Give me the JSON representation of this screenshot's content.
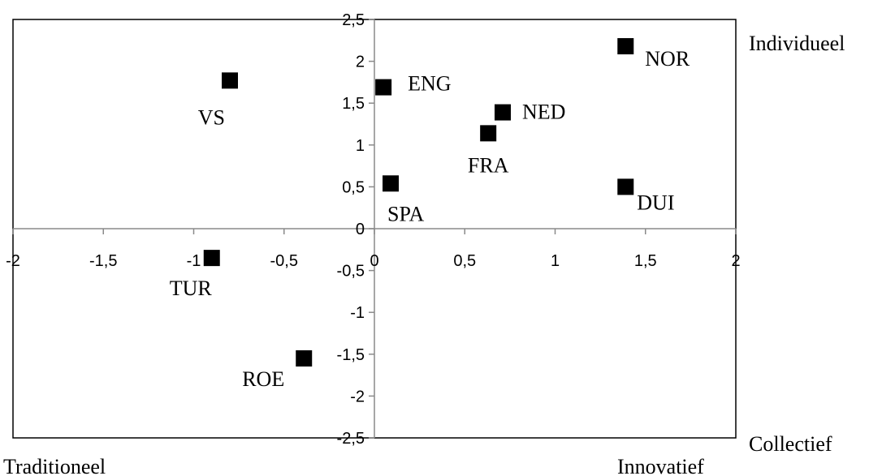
{
  "chart_data": {
    "type": "scatter",
    "xlim": [
      -2,
      2
    ],
    "ylim": [
      -2.5,
      2.5
    ],
    "x_ticks": [
      "-2",
      "-1,5",
      "-1",
      "-0,5",
      "0",
      "0,5",
      "1",
      "1,5",
      "2"
    ],
    "y_ticks": [
      "-2,5",
      "-2",
      "-1,5",
      "-1",
      "-0,5",
      "0",
      "0,5",
      "1",
      "1,5",
      "2",
      "2,5"
    ],
    "grid": false,
    "points": [
      {
        "label": "NOR",
        "x": 1.39,
        "y": 2.18
      },
      {
        "label": "VS",
        "x": -0.8,
        "y": 1.77
      },
      {
        "label": "ENG",
        "x": 0.05,
        "y": 1.69
      },
      {
        "label": "NED",
        "x": 0.71,
        "y": 1.39
      },
      {
        "label": "FRA",
        "x": 0.63,
        "y": 1.14
      },
      {
        "label": "SPA",
        "x": 0.09,
        "y": 0.54
      },
      {
        "label": "DUI",
        "x": 1.39,
        "y": 0.5
      },
      {
        "label": "TUR",
        "x": -0.9,
        "y": -0.35
      },
      {
        "label": "ROE",
        "x": -0.39,
        "y": -1.55
      }
    ],
    "corner_labels": {
      "top_right": "Individueel",
      "bottom_right": "Collectief",
      "bottom_left": "Traditioneel",
      "bottom_right_lower": "Innovatief"
    },
    "marker_color": "#000000"
  }
}
